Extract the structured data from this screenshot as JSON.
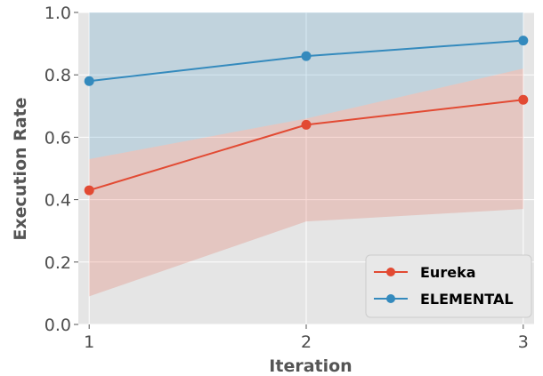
{
  "chart_data": {
    "type": "line",
    "x": [
      1,
      2,
      3
    ],
    "xticks": [
      "1",
      "2",
      "3"
    ],
    "yticks": [
      "0.0",
      "0.2",
      "0.4",
      "0.6",
      "0.8",
      "1.0"
    ],
    "xlabel": "Iteration",
    "ylabel": "Execution Rate",
    "xlim": [
      0.95,
      3.05
    ],
    "ylim": [
      0.0,
      1.0
    ],
    "grid": true,
    "legend_position": "lower-right",
    "series": [
      {
        "name": "Eureka",
        "color": "#e24a33",
        "values": [
          0.43,
          0.64,
          0.72
        ],
        "band_lower": [
          0.09,
          0.33,
          0.37
        ],
        "band_upper": [
          0.53,
          0.66,
          0.82
        ]
      },
      {
        "name": "ELEMENTAL",
        "color": "#348abd",
        "values": [
          0.78,
          0.86,
          0.91
        ],
        "band_lower": [
          0.53,
          0.66,
          0.82
        ],
        "band_upper": [
          1.03,
          1.03,
          1.03
        ]
      }
    ]
  }
}
